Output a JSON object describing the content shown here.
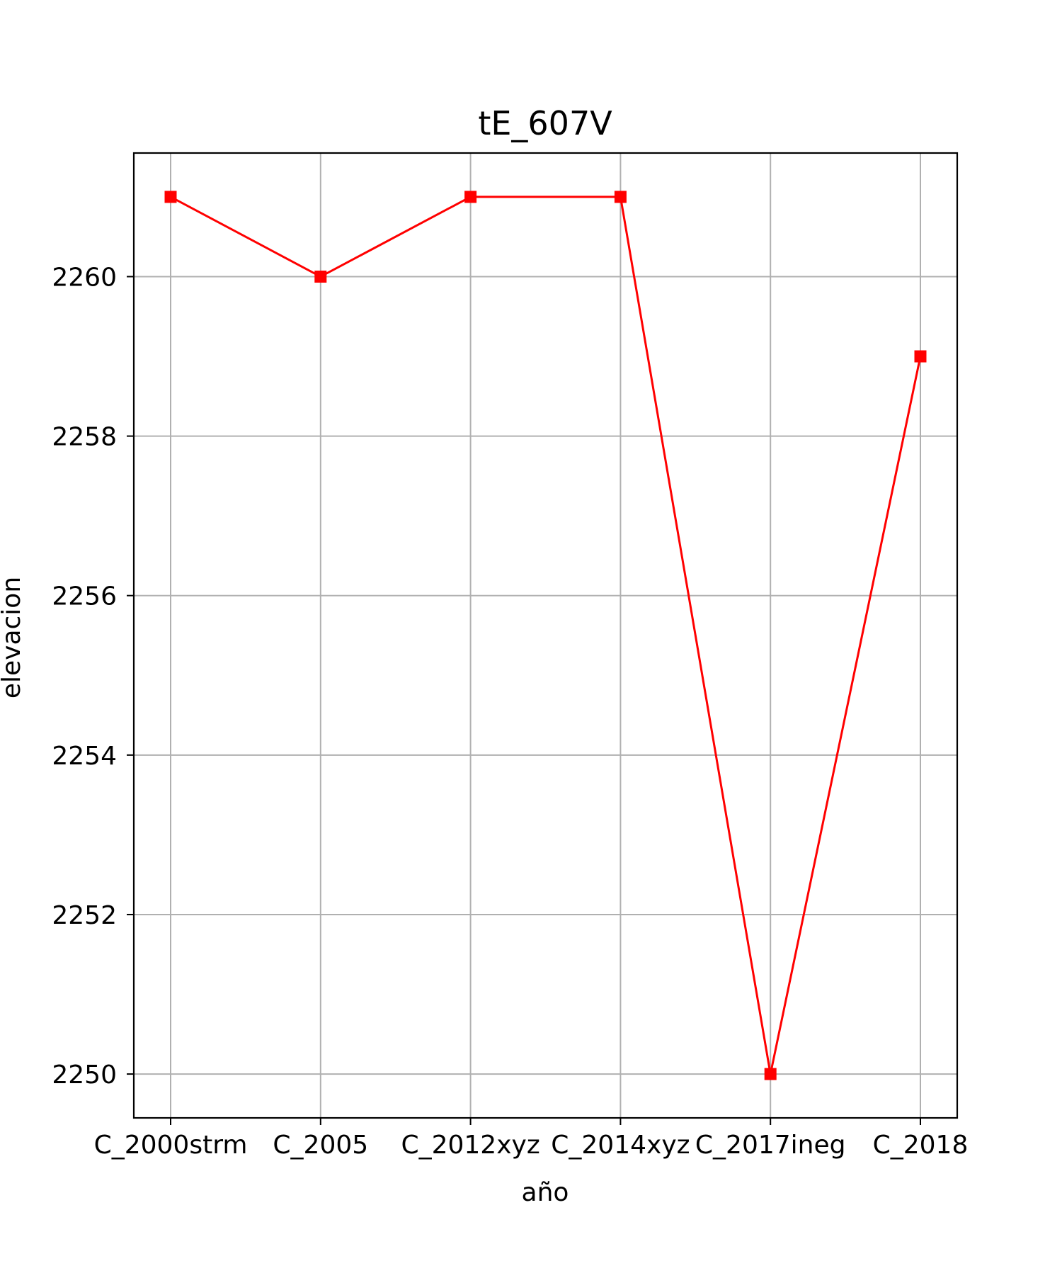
{
  "chart_data": {
    "type": "line",
    "title": "tE_607V",
    "xlabel": "año",
    "ylabel": "elevacion",
    "categories": [
      "C_2000strm",
      "C_2005",
      "C_2012xyz",
      "C_2014xyz",
      "C_2017ineg",
      "C_2018"
    ],
    "series": [
      {
        "values": [
          2261,
          2260,
          2261,
          2261,
          2250,
          2259
        ],
        "color": "#ff0000",
        "marker": "square"
      }
    ],
    "ylim": [
      2249.45,
      2261.55
    ],
    "yticks": [
      2250,
      2252,
      2254,
      2256,
      2258,
      2260
    ],
    "grid": true,
    "colors": {
      "grid": "#b0b0b0",
      "axes": "#000000",
      "line": "#ff0000"
    }
  }
}
